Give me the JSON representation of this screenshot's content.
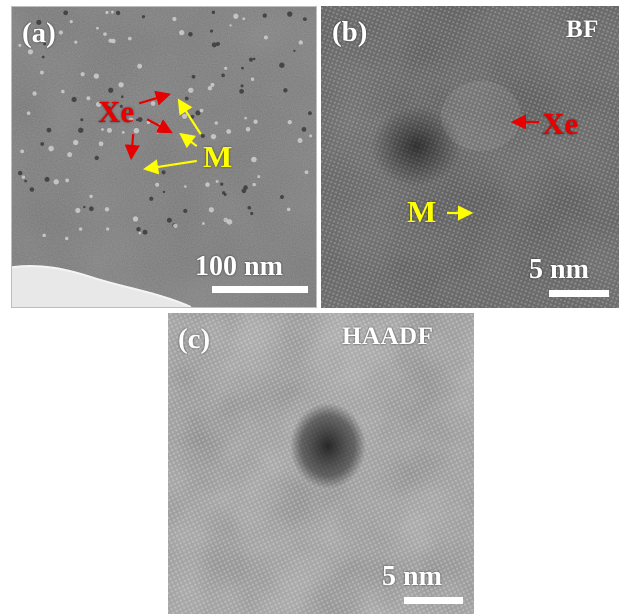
{
  "panels": {
    "a": {
      "letter": "(a)",
      "scale": "100 nm",
      "xe": "Xe",
      "m": "M"
    },
    "b": {
      "letter": "(b)",
      "mode": "BF",
      "scale": "5 nm",
      "xe": "Xe",
      "m": "M"
    },
    "c": {
      "letter": "(c)",
      "mode": "HAADF",
      "scale": "5 nm"
    }
  },
  "colors": {
    "xe_arrow": "#e60000",
    "m_arrow": "#ffff00",
    "labels": "#ffffff"
  }
}
